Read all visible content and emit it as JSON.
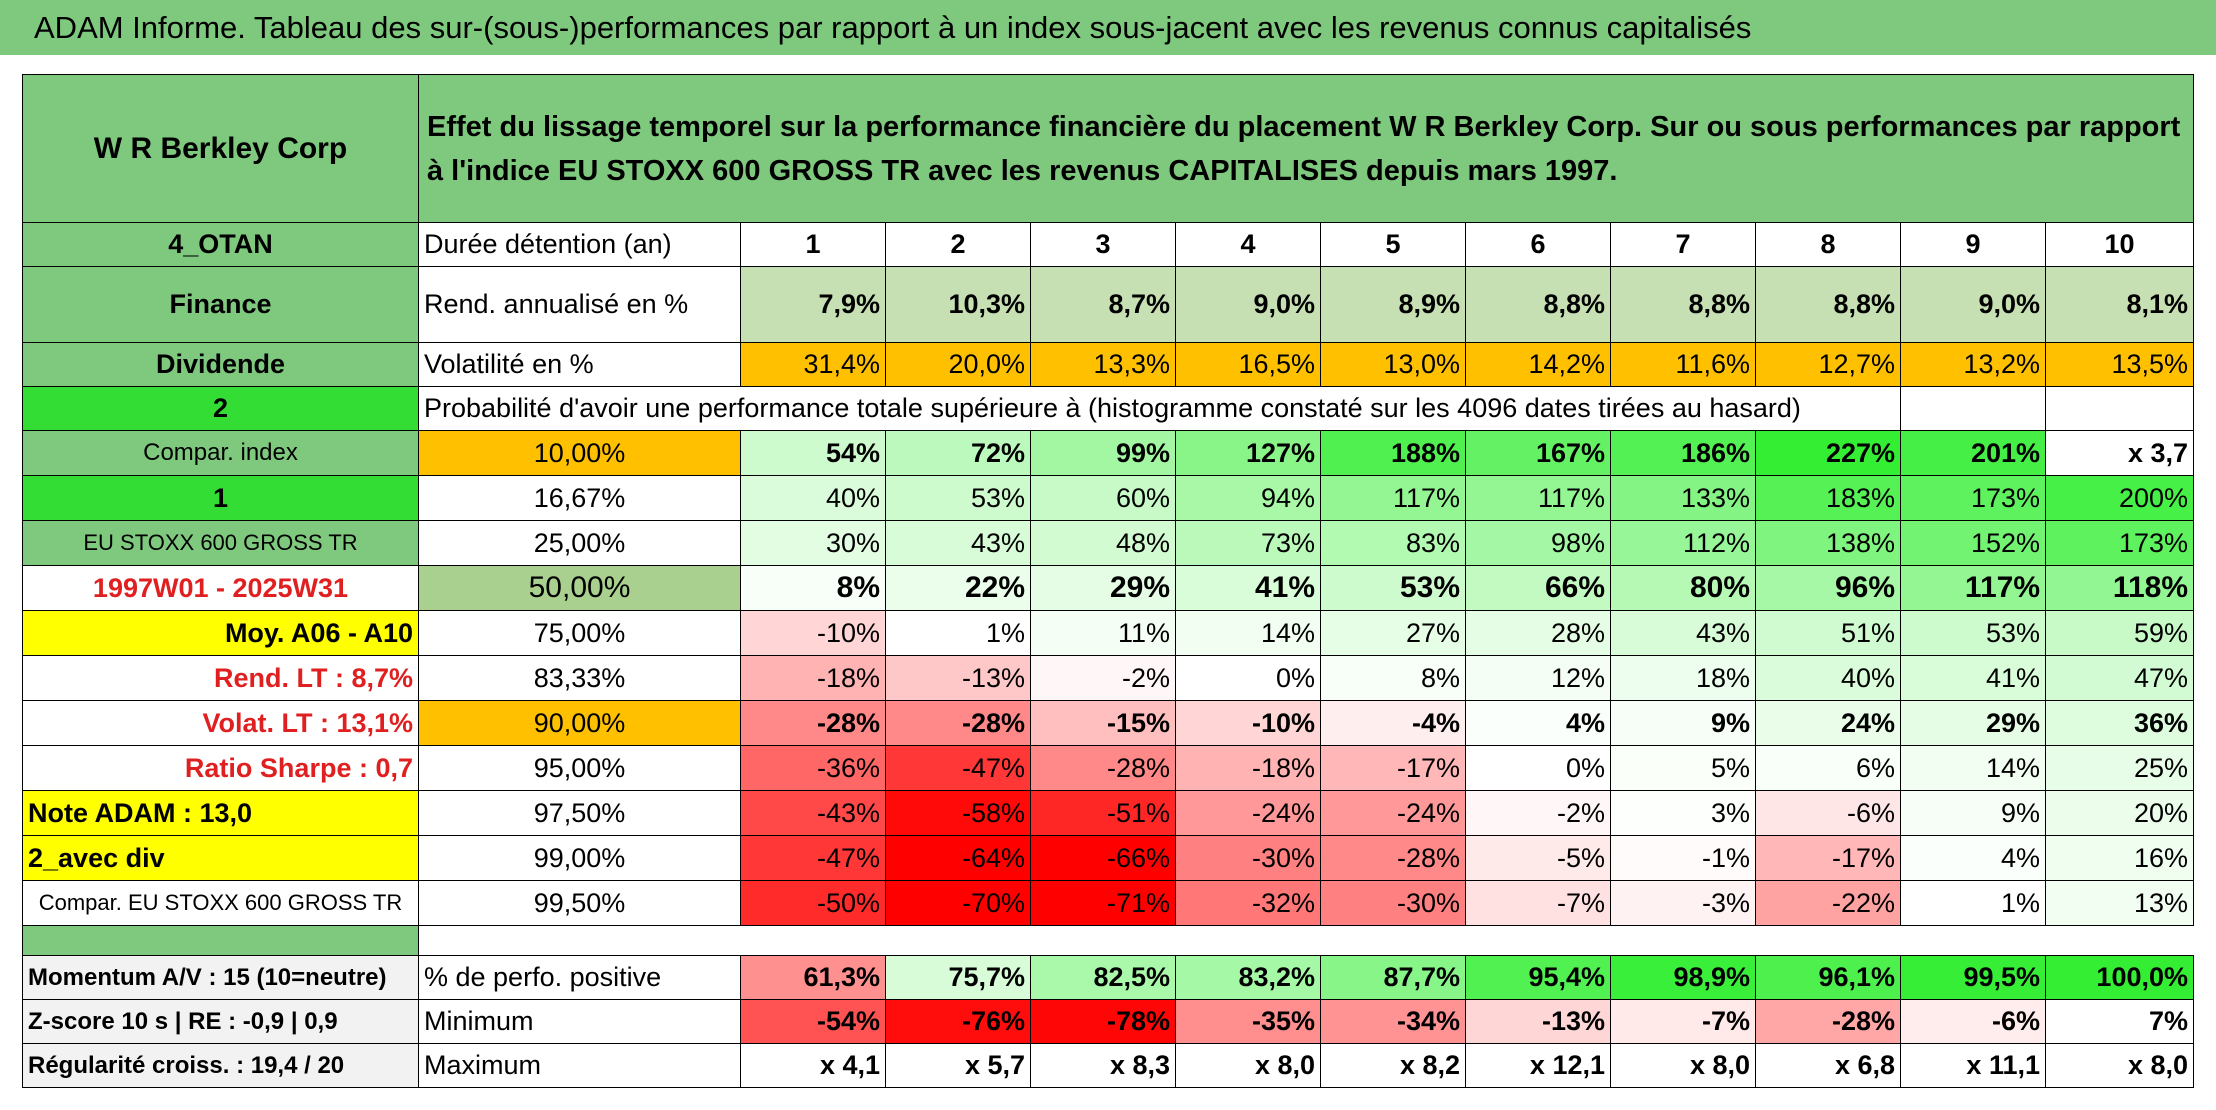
{
  "banner": "ADAM Informe. Tableau des sur-(sous-)performances par rapport à un index sous-jacent avec les revenus connus capitalisés",
  "header": {
    "company": "W R Berkley Corp",
    "title": "Effet du lissage temporel sur la performance financière du placement W R Berkley Corp. Sur ou sous performances par rapport à l'indice EU STOXX 600 GROSS TR avec les revenus CAPITALISES depuis mars 1997."
  },
  "rows": {
    "duration": {
      "side": "4_OTAN",
      "label": "Durée détention (an)",
      "years": [
        "1",
        "2",
        "3",
        "4",
        "5",
        "6",
        "7",
        "8",
        "9",
        "10"
      ]
    },
    "return": {
      "side": "Finance",
      "label": "Rend. annualisé en %",
      "values": [
        "7,9%",
        "10,3%",
        "8,7%",
        "9,0%",
        "8,9%",
        "8,8%",
        "8,8%",
        "8,8%",
        "9,0%",
        "8,1%"
      ]
    },
    "volatility": {
      "side": "Dividende",
      "label": "Volatilité en %",
      "values": [
        "31,4%",
        "20,0%",
        "13,3%",
        "16,5%",
        "13,0%",
        "14,2%",
        "11,6%",
        "12,7%",
        "13,2%",
        "13,5%"
      ]
    },
    "prob_header": {
      "side": "2",
      "label": "Probabilité d'avoir une performance totale supérieure à (histogramme constaté sur les 4096 dates tirées au hasard)"
    }
  },
  "percentile_rows": [
    {
      "side": "Compar. index",
      "pct": "10,00%",
      "values": [
        "54%",
        "72%",
        "99%",
        "127%",
        "188%",
        "167%",
        "186%",
        "227%",
        "201%",
        "x 3,7"
      ]
    },
    {
      "side": "1",
      "pct": "16,67%",
      "values": [
        "40%",
        "53%",
        "60%",
        "94%",
        "117%",
        "117%",
        "133%",
        "183%",
        "173%",
        "200%"
      ]
    },
    {
      "side": "EU STOXX 600 GROSS TR",
      "pct": "25,00%",
      "values": [
        "30%",
        "43%",
        "48%",
        "73%",
        "83%",
        "98%",
        "112%",
        "138%",
        "152%",
        "173%"
      ]
    },
    {
      "side": "1997W01 - 2025W31",
      "pct": "50,00%",
      "values": [
        "8%",
        "22%",
        "29%",
        "41%",
        "53%",
        "66%",
        "80%",
        "96%",
        "117%",
        "118%"
      ]
    },
    {
      "side": "Moy. A06 - A10",
      "pct": "75,00%",
      "values": [
        "-10%",
        "1%",
        "11%",
        "14%",
        "27%",
        "28%",
        "43%",
        "51%",
        "53%",
        "59%"
      ]
    },
    {
      "side": "Rend. LT :   8,7%",
      "pct": "83,33%",
      "values": [
        "-18%",
        "-13%",
        "-2%",
        "0%",
        "8%",
        "12%",
        "18%",
        "40%",
        "41%",
        "47%"
      ]
    },
    {
      "side": "Volat. LT :   13,1%",
      "pct": "90,00%",
      "values": [
        "-28%",
        "-28%",
        "-15%",
        "-10%",
        "-4%",
        "4%",
        "9%",
        "24%",
        "29%",
        "36%"
      ]
    },
    {
      "side": "Ratio Sharpe :   0,7",
      "pct": "95,00%",
      "values": [
        "-36%",
        "-47%",
        "-28%",
        "-18%",
        "-17%",
        "0%",
        "5%",
        "6%",
        "14%",
        "25%"
      ]
    },
    {
      "side": "Note ADAM : 13,0",
      "pct": "97,50%",
      "values": [
        "-43%",
        "-58%",
        "-51%",
        "-24%",
        "-24%",
        "-2%",
        "3%",
        "-6%",
        "9%",
        "20%"
      ]
    },
    {
      "side": "2_avec div",
      "pct": "99,00%",
      "values": [
        "-47%",
        "-64%",
        "-66%",
        "-30%",
        "-28%",
        "-5%",
        "-1%",
        "-17%",
        "4%",
        "16%"
      ]
    },
    {
      "side": "Compar. EU STOXX 600 GROSS TR",
      "pct": "99,50%",
      "values": [
        "-50%",
        "-70%",
        "-71%",
        "-32%",
        "-30%",
        "-7%",
        "-3%",
        "-22%",
        "1%",
        "13%"
      ]
    }
  ],
  "bottom_rows": [
    {
      "side": "Momentum A/V : 15 (10=neutre)",
      "label": "% de perfo. positive",
      "values": [
        "61,3%",
        "75,7%",
        "82,5%",
        "83,2%",
        "87,7%",
        "95,4%",
        "98,9%",
        "96,1%",
        "99,5%",
        "100,0%"
      ]
    },
    {
      "side": "Z-score 10 s | RE : -0,9 | 0,9",
      "label": "Minimum",
      "values": [
        "-54%",
        "-76%",
        "-78%",
        "-35%",
        "-34%",
        "-13%",
        "-7%",
        "-28%",
        "-6%",
        "7%"
      ]
    },
    {
      "side": "Régularité croiss. : 19,4 / 20",
      "label": "Maximum",
      "values": [
        "x 4,1",
        "x 5,7",
        "x 8,3",
        "x 8,0",
        "x 8,2",
        "x 12,1",
        "x 8,0",
        "x 6,8",
        "x 11,1",
        "x 8,0"
      ]
    }
  ],
  "colors": {
    "header_green": "#7fc97f",
    "bright_green": "#33dd33",
    "yellow": "#ffff00",
    "orange": "#ffc000",
    "strong_red": "#ff0000",
    "strong_green": "#33ee33"
  }
}
